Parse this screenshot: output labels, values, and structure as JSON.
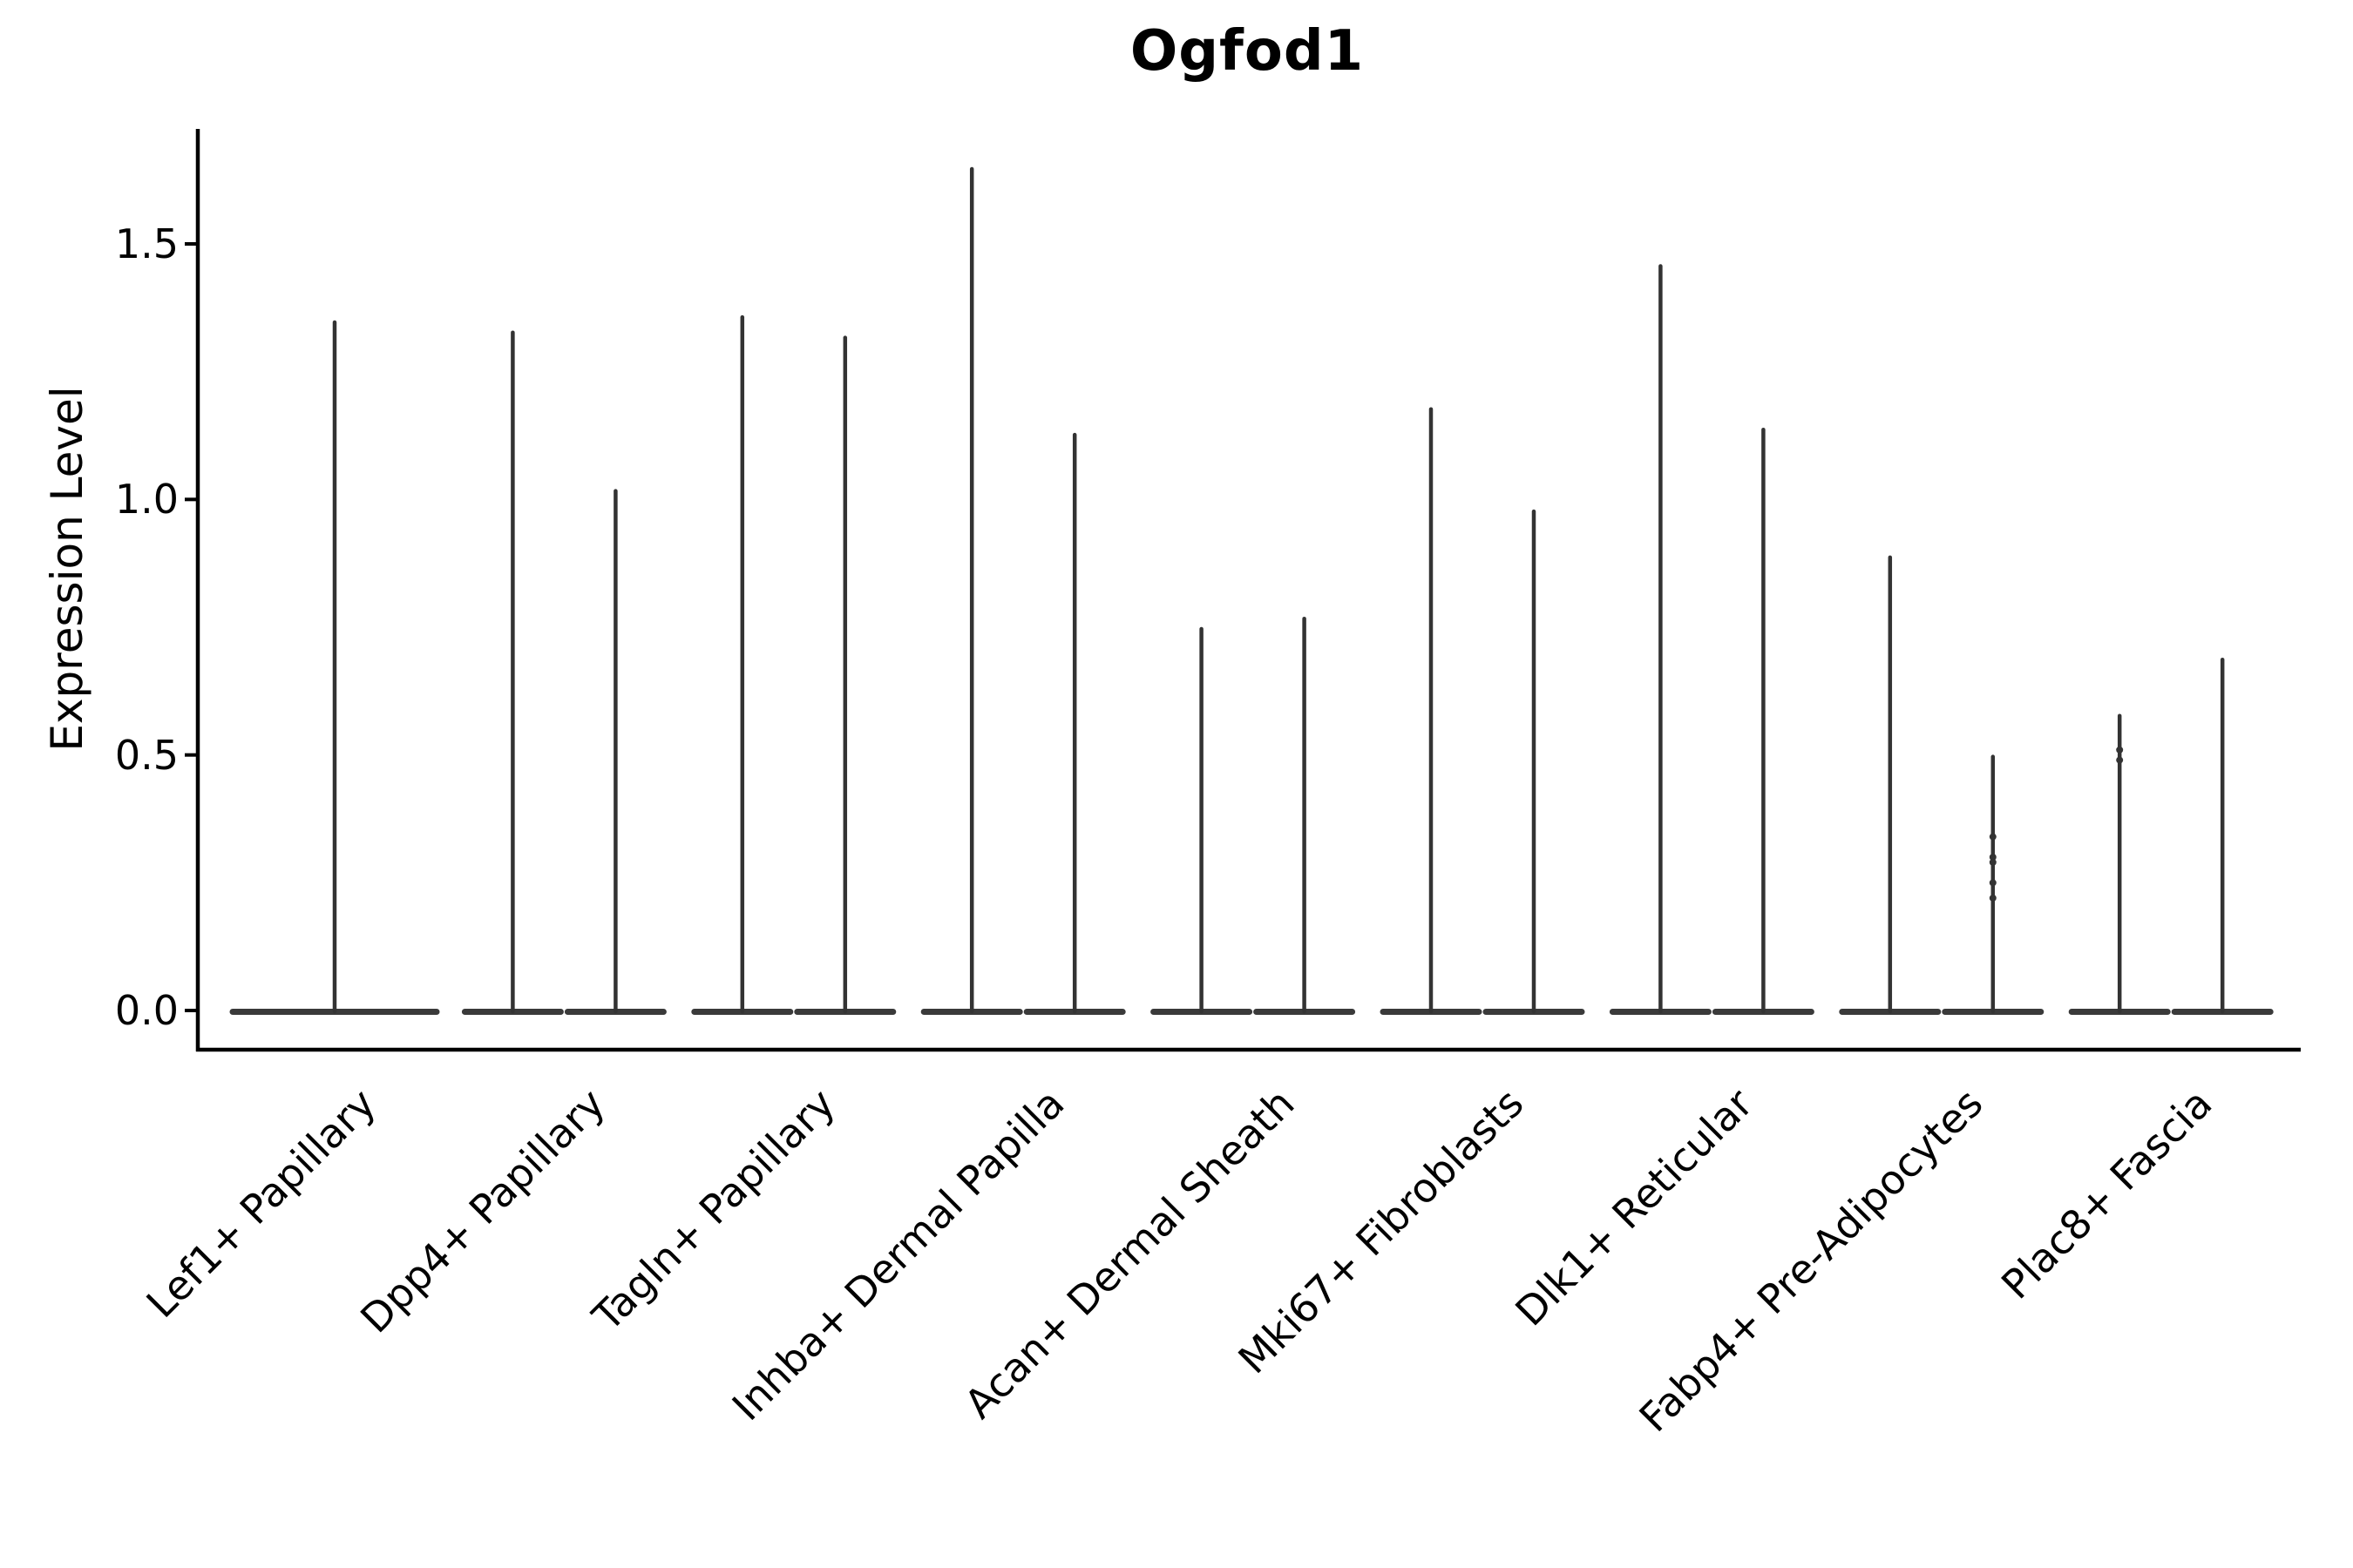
{
  "chart_data": {
    "type": "violin",
    "title": "Ogfod1",
    "ylabel": "Expression Level",
    "xlabel": "",
    "ylim": [
      -0.08,
      1.72
    ],
    "yticks": [
      "0.0",
      "0.5",
      "1.0",
      "1.5"
    ],
    "ytick_values": [
      0.0,
      0.5,
      1.0,
      1.5
    ],
    "grid": false,
    "legend": "none",
    "background_color": "#ffffff",
    "violin_color": "#333333",
    "axis_color": "#000000",
    "shape_note": "Each violin is a flat dense base at expression 0 with an extremely thin spike rising to its maximum value",
    "categories": [
      "Lef1+ Papillary",
      "Dpp4+ Papillary",
      "Tagln+ Papillary",
      "Inhba+ Dermal Papilla",
      "Acan+ Dermal Sheath",
      "Mki67+ Fibroblasts",
      "Dlk1+ Reticular",
      "Fabp4+ Pre-Adipocytes",
      "Plac8+ Fascia"
    ],
    "groups": [
      {
        "category": "Lef1+ Papillary",
        "violin_max": [
          1.35
        ]
      },
      {
        "category": "Dpp4+ Papillary",
        "violin_max": [
          1.33,
          1.02
        ]
      },
      {
        "category": "Tagln+ Papillary",
        "violin_max": [
          1.36,
          1.32
        ]
      },
      {
        "category": "Inhba+ Dermal Papilla",
        "violin_max": [
          1.65,
          1.13
        ]
      },
      {
        "category": "Acan+ Dermal Sheath",
        "violin_max": [
          0.75,
          0.77
        ]
      },
      {
        "category": "Mki67+ Fibroblasts",
        "violin_max": [
          1.18,
          0.98
        ]
      },
      {
        "category": "Dlk1+ Reticular",
        "violin_max": [
          1.46,
          1.14
        ]
      },
      {
        "category": "Fabp4+ Pre-Adipocytes",
        "violin_max": [
          0.89,
          0.5
        ]
      },
      {
        "category": "Plac8+ Fascia",
        "violin_max": [
          0.58,
          0.69
        ]
      }
    ],
    "density_dots": [
      {
        "category_index": 7,
        "violin_index": 1,
        "values": [
          0.34,
          0.3,
          0.29,
          0.25,
          0.22
        ]
      },
      {
        "category_index": 8,
        "violin_index": 0,
        "values": [
          0.51,
          0.49
        ]
      }
    ]
  }
}
